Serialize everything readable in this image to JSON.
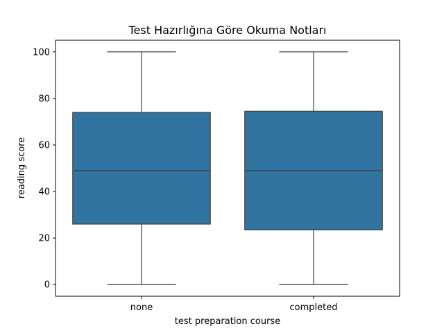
{
  "chart_data": {
    "type": "box",
    "title": "Test Hazırlığına Göre Okuma Notları",
    "xlabel": "test preparation course",
    "ylabel": "reading score",
    "categories": [
      "none",
      "completed"
    ],
    "boxes": [
      {
        "category": "none",
        "whisker_low": 0,
        "q1": 26,
        "median": 49,
        "q3": 74,
        "whisker_high": 100
      },
      {
        "category": "completed",
        "whisker_low": 0,
        "q1": 23.5,
        "median": 49,
        "q3": 74.5,
        "whisker_high": 100
      }
    ],
    "yticks": [
      0,
      20,
      40,
      60,
      80,
      100
    ],
    "ylim": [
      -5,
      105
    ],
    "box_color": "#3274a1",
    "edge_color": "#3f3f3f",
    "grid": false,
    "legend": "none"
  }
}
